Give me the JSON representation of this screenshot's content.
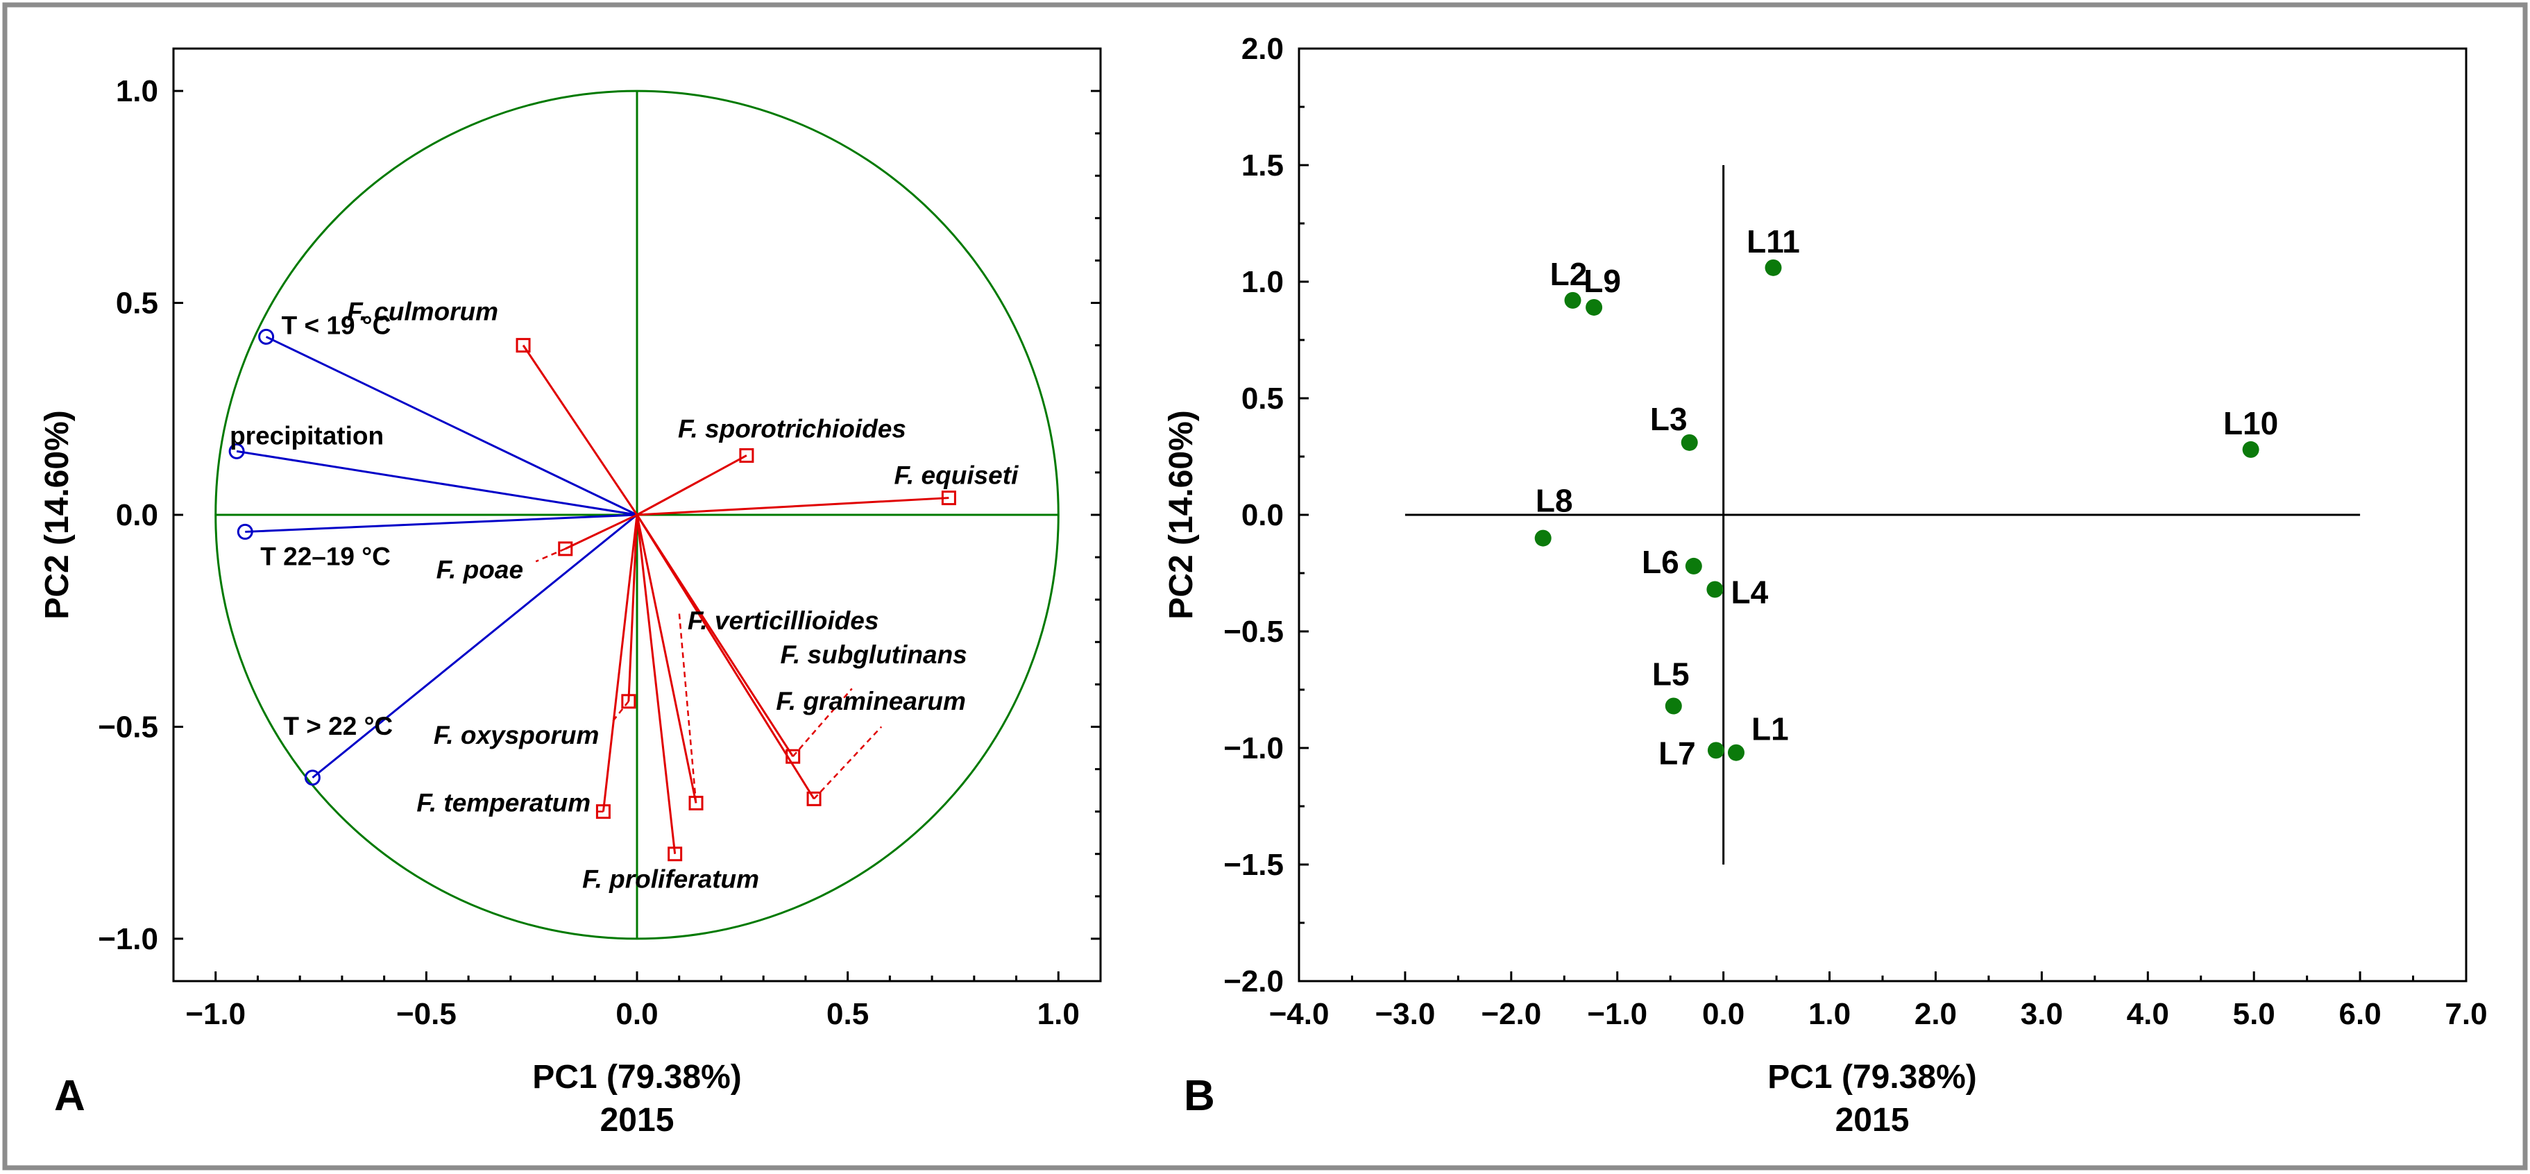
{
  "figure": {
    "panel_a_letter": "A",
    "panel_b_letter": "B"
  },
  "colors": {
    "circle": "#007a00",
    "env_vector": "#0000c8",
    "species_vector": "#e00000",
    "score_point": "#0b7a0b"
  },
  "chart_data": [
    {
      "type": "scatter",
      "panel": "A",
      "title": "",
      "xlabel": "PC1 (79.38%)",
      "sublabel": "2015",
      "ylabel": "PC2 (14.60%)",
      "xlim": [
        -1.1,
        1.1
      ],
      "ylim": [
        -1.1,
        1.1
      ],
      "xticks": [
        -1.0,
        -0.5,
        0.0,
        0.5,
        1.0
      ],
      "xtick_labels": [
        "−1.0",
        "−0.5",
        "0.0",
        "0.5",
        "1.0"
      ],
      "yticks": [
        -1.0,
        -0.5,
        0.0,
        0.5,
        1.0
      ],
      "ytick_labels": [
        "−1.0",
        "−0.5",
        "0.0",
        "0.5",
        "1.0"
      ],
      "unit_circle": true,
      "environmental_vectors": [
        {
          "name": "T < 19 °C",
          "x": -0.88,
          "y": 0.42
        },
        {
          "name": "precipitation",
          "x": -0.95,
          "y": 0.15
        },
        {
          "name": "T 22–19 °C",
          "x": -0.93,
          "y": -0.04
        },
        {
          "name": "T > 22 °C",
          "x": -0.77,
          "y": -0.62
        }
      ],
      "species_vectors": [
        {
          "name": "F. culmorum",
          "x": -0.27,
          "y": 0.4
        },
        {
          "name": "F. sporotrichioides",
          "x": 0.26,
          "y": 0.14
        },
        {
          "name": "F. equiseti",
          "x": 0.74,
          "y": 0.04
        },
        {
          "name": "F. poae",
          "x": -0.17,
          "y": -0.08
        },
        {
          "name": "F. verticillioides",
          "x": 0.14,
          "y": -0.68
        },
        {
          "name": "F. subglutinans",
          "x": 0.37,
          "y": -0.57
        },
        {
          "name": "F. graminearum",
          "x": 0.42,
          "y": -0.67
        },
        {
          "name": "F. oxysporum",
          "x": -0.02,
          "y": -0.44
        },
        {
          "name": "F. temperatum",
          "x": -0.08,
          "y": -0.7
        },
        {
          "name": "F. proliferatum",
          "x": 0.09,
          "y": -0.8
        }
      ]
    },
    {
      "type": "scatter",
      "panel": "B",
      "title": "",
      "xlabel": "PC1 (79.38%)",
      "sublabel": "2015",
      "ylabel": "PC2 (14.60%)",
      "xlim": [
        -4.0,
        7.0
      ],
      "ylim": [
        -2.0,
        2.0
      ],
      "xticks": [
        -4,
        -3,
        -2,
        -1,
        0,
        1,
        2,
        3,
        4,
        5,
        6,
        7
      ],
      "xtick_labels": [
        "−4.0",
        "−3.0",
        "−2.0",
        "−1.0",
        "0.0",
        "1.0",
        "2.0",
        "3.0",
        "4.0",
        "5.0",
        "6.0",
        "7.0"
      ],
      "yticks": [
        -2.0,
        -1.5,
        -1.0,
        -0.5,
        0.0,
        0.5,
        1.0,
        1.5,
        2.0
      ],
      "ytick_labels": [
        "−2.0",
        "−1.5",
        "−1.0",
        "−0.5",
        "0.0",
        "0.5",
        "1.0",
        "1.5",
        "2.0"
      ],
      "crosshair": {
        "x_from": -3.0,
        "x_to": 6.0,
        "y_from": -1.5,
        "y_to": 1.5
      },
      "points": [
        {
          "name": "L1",
          "x": 0.12,
          "y": -1.02
        },
        {
          "name": "L2",
          "x": -1.42,
          "y": 0.92
        },
        {
          "name": "L3",
          "x": -0.32,
          "y": 0.31
        },
        {
          "name": "L4",
          "x": -0.08,
          "y": -0.32
        },
        {
          "name": "L5",
          "x": -0.47,
          "y": -0.82
        },
        {
          "name": "L6",
          "x": -0.28,
          "y": -0.22
        },
        {
          "name": "L7",
          "x": -0.07,
          "y": -1.01
        },
        {
          "name": "L8",
          "x": -1.7,
          "y": -0.1
        },
        {
          "name": "L9",
          "x": -1.22,
          "y": 0.89
        },
        {
          "name": "L10",
          "x": 4.97,
          "y": 0.28
        },
        {
          "name": "L11",
          "x": 0.47,
          "y": 1.06
        }
      ]
    }
  ]
}
